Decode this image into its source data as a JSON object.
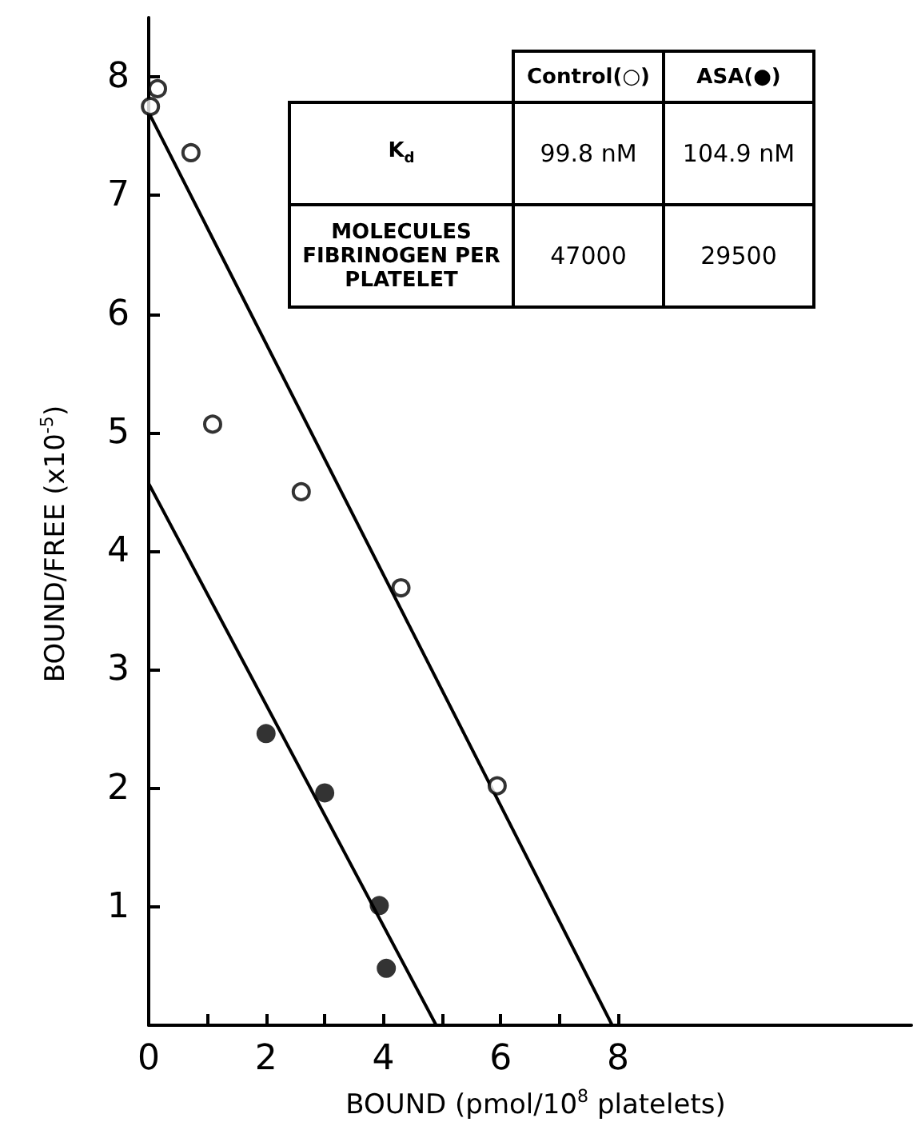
{
  "chart_data": {
    "type": "scatter",
    "xlabel": "BOUND (pmol/10$^{8}$ platelets)",
    "ylabel": "BOUND/FREE  (x10$^{-5}$)",
    "xlim": [
      0,
      13
    ],
    "ylim": [
      0,
      8.5
    ],
    "xticks": [
      0,
      {
        "value": 1,
        "label": null
      },
      2,
      {
        "value": 3,
        "label": null
      },
      4,
      {
        "value": 5,
        "label": null
      },
      6,
      {
        "value": 7,
        "label": null
      },
      8
    ],
    "yticks": [
      1,
      2,
      3,
      4,
      5,
      6,
      7,
      8
    ],
    "grid": false,
    "series": [
      {
        "color": "#000000",
        "marker": "circle",
        "x": [
          0.03,
          0.15,
          0.72,
          1.09,
          2.6,
          4.3,
          5.94
        ],
        "values": [
          7.75,
          7.9,
          7.36,
          5.07,
          4.5,
          3.69,
          2.02
        ]
      },
      {
        "color": "#000000",
        "marker": "circle",
        "x": [
          2.0,
          3.0,
          3.93,
          4.05
        ],
        "values": [
          2.46,
          1.96,
          1.01,
          0.48
        ]
      },
      {
        "type": "line",
        "color": "#000000",
        "marker": "none",
        "line_style": "solid",
        "x": [
          0,
          7.9
        ],
        "values": [
          7.7,
          0
        ]
      },
      {
        "type": "line",
        "color": "#000000",
        "marker": "none",
        "line_style": "solid",
        "x": [
          0,
          4.9
        ],
        "values": [
          4.57,
          0
        ]
      }
    ],
    "annotations": [
      "Control(○)",
      "ASA(●)",
      "K$_{d}$",
      "99.8 nM",
      "104.9 nM",
      "MOLECULES FIBRINOGEN PER PLATELET",
      "47000",
      "29500"
    ]
  }
}
